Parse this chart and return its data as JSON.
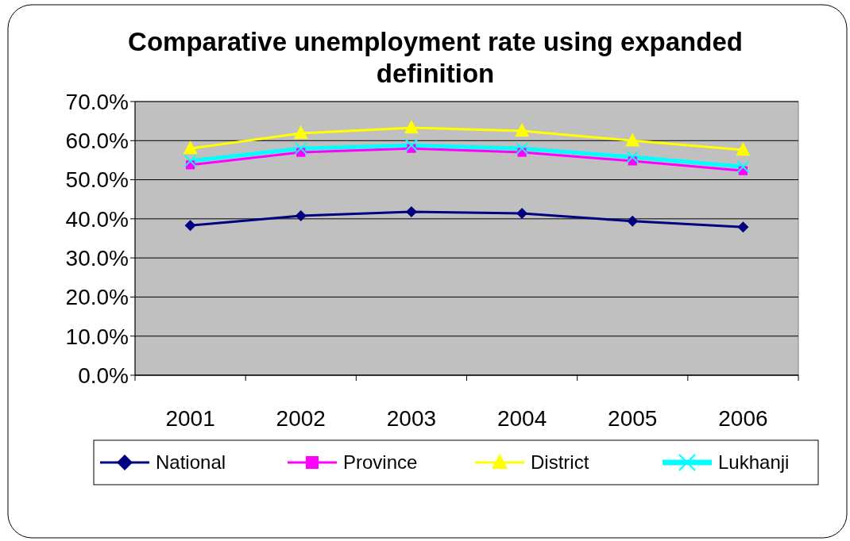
{
  "chart_data": {
    "type": "line",
    "title": "Comparative unemployment rate using expanded definition",
    "categories": [
      "2001",
      "2002",
      "2003",
      "2004",
      "2005",
      "2006"
    ],
    "series": [
      {
        "name": "National",
        "color": "#000080",
        "marker": "diamond",
        "values": [
          38.3,
          40.8,
          41.8,
          41.4,
          39.4,
          37.9
        ]
      },
      {
        "name": "Province",
        "color": "#ff00ff",
        "marker": "square",
        "values": [
          53.8,
          57.0,
          58.0,
          57.0,
          54.8,
          52.3
        ]
      },
      {
        "name": "District",
        "color": "#ffff00",
        "marker": "triangle",
        "values": [
          58.0,
          61.9,
          63.3,
          62.5,
          60.0,
          57.6
        ]
      },
      {
        "name": "Lukhanji",
        "color": "#00ffff",
        "marker": "cross",
        "values": [
          54.8,
          58.0,
          58.8,
          58.0,
          55.8,
          53.3
        ]
      }
    ],
    "ylim": [
      0,
      70
    ],
    "yticks": [
      {
        "value": 0,
        "label": "0.0%"
      },
      {
        "value": 10,
        "label": "10.0%"
      },
      {
        "value": 20,
        "label": "20.0%"
      },
      {
        "value": 30,
        "label": "30.0%"
      },
      {
        "value": 40,
        "label": "40.0%"
      },
      {
        "value": 50,
        "label": "50.0%"
      },
      {
        "value": 60,
        "label": "60.0%"
      },
      {
        "value": 70,
        "label": "70.0%"
      }
    ],
    "grid": "y",
    "legend": "bottom",
    "line_style": "solid"
  }
}
